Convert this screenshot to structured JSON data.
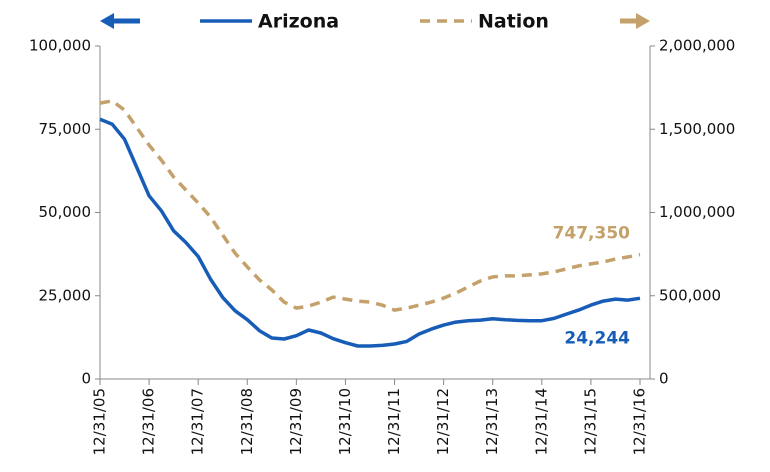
{
  "chart_data": {
    "type": "line",
    "categories": [
      "12/31/05",
      null,
      null,
      null,
      "12/31/06",
      null,
      null,
      null,
      "12/31/07",
      null,
      null,
      null,
      "12/31/08",
      null,
      null,
      null,
      "12/31/09",
      null,
      null,
      null,
      "12/31/10",
      null,
      null,
      null,
      "12/31/11",
      null,
      null,
      null,
      "12/31/12",
      null,
      null,
      null,
      "12/31/13",
      null,
      null,
      null,
      "12/31/14",
      null,
      null,
      null,
      "12/31/15",
      null,
      null,
      null,
      "12/31/16"
    ],
    "series": [
      {
        "name": "Arizona",
        "color": "#175db8",
        "axis": "y",
        "dash": "solid",
        "end_label": "24,244",
        "values": [
          78000,
          76500,
          72000,
          63500,
          55000,
          50500,
          44500,
          41000,
          36800,
          30000,
          24500,
          20500,
          17800,
          14500,
          12300,
          12000,
          13000,
          14700,
          13800,
          12100,
          10900,
          9900,
          9900,
          10100,
          10500,
          11300,
          13500,
          15000,
          16200,
          17100,
          17500,
          17700,
          18100,
          17800,
          17600,
          17500,
          17500,
          18200,
          19500,
          20700,
          22200,
          23400,
          24000,
          23700,
          24244
        ]
      },
      {
        "name": "Nation",
        "color": "#c4a16a",
        "axis": "y2",
        "dash": "dashed",
        "end_label": "747,350",
        "values": [
          1657000,
          1670000,
          1615000,
          1510000,
          1405000,
          1315000,
          1213000,
          1135000,
          1057000,
          973000,
          865000,
          757000,
          673000,
          595000,
          535000,
          462000,
          426000,
          438000,
          462000,
          492000,
          480000,
          468000,
          462000,
          444000,
          414000,
          426000,
          444000,
          462000,
          486000,
          516000,
          553000,
          589000,
          613000,
          619000,
          619000,
          625000,
          631000,
          643000,
          661000,
          679000,
          691000,
          703000,
          721000,
          733000,
          747350
        ]
      }
    ],
    "ylim": [
      0,
      100000
    ],
    "yticks": [
      0,
      {
        "value": 25000,
        "label": "25,000"
      },
      {
        "value": 50000,
        "label": "50,000"
      },
      {
        "value": 75000,
        "label": "75,000"
      },
      {
        "value": 100000,
        "label": "100,000"
      }
    ],
    "y2lim": [
      0,
      2000000
    ],
    "y2ticks": [
      0,
      {
        "value": 500000,
        "label": "500,000"
      },
      {
        "value": 1000000,
        "label": "1,000,000"
      },
      {
        "value": 1500000,
        "label": "1,500,000"
      },
      {
        "value": 2000000,
        "label": "2,000,000"
      }
    ],
    "grid": false
  }
}
